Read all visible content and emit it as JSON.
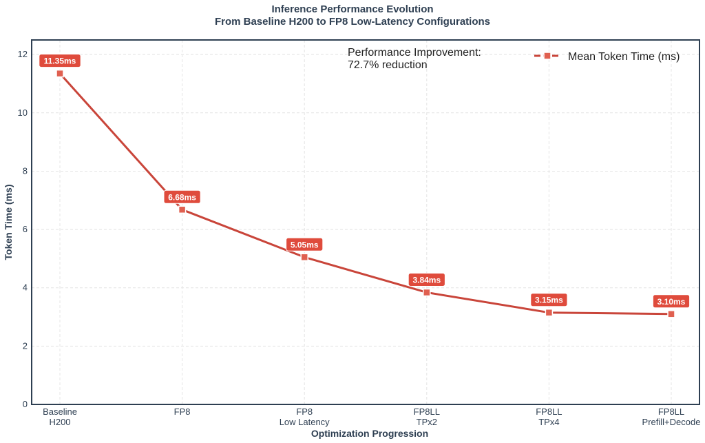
{
  "chart_data": {
    "type": "line",
    "title": "Inference Performance Evolution",
    "subtitle": "From Baseline H200 to FP8 Low-Latency Configurations",
    "xlabel": "Optimization Progression",
    "ylabel": "Token Time (ms)",
    "categories": [
      [
        "Baseline",
        "H200"
      ],
      [
        "FP8"
      ],
      [
        "FP8",
        "Low Latency"
      ],
      [
        "FP8LL",
        "TPx2"
      ],
      [
        "FP8LL",
        "TPx4"
      ],
      [
        "FP8LL",
        "Prefill+Decode"
      ]
    ],
    "series": [
      {
        "name": "Mean Token Time (ms)",
        "values": [
          11.35,
          6.68,
          5.05,
          3.84,
          3.15,
          3.1
        ],
        "labels": [
          "11.35ms",
          "6.68ms",
          "5.05ms",
          "3.84ms",
          "3.15ms",
          "3.10ms"
        ],
        "color": "#c9453a"
      }
    ],
    "ylim": [
      0,
      12.5
    ],
    "yticks": [
      0,
      2,
      4,
      6,
      8,
      10,
      12
    ],
    "grid": true,
    "legend": "top-right",
    "annotation": [
      "Performance Improvement:",
      "72.7% reduction"
    ]
  }
}
